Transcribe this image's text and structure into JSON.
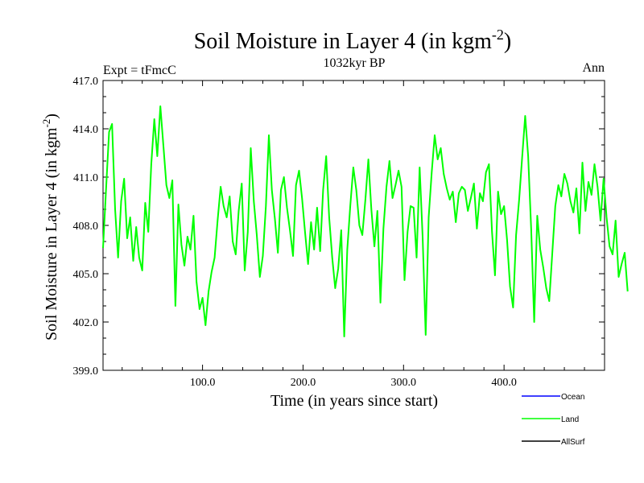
{
  "chart_data": {
    "type": "line",
    "title": "Soil Moisture in Layer 4 (in kgm",
    "title_sup": "-2",
    "title_end": ")",
    "subtitle": "1032kyr BP",
    "left_label": "Expt = tFmcC",
    "right_label": "Ann",
    "xlabel": "Time (in years since start)",
    "ylabel": "Soil Moisture in Layer 4 (in kgm",
    "ylabel_sup": "-2",
    "ylabel_end": ")",
    "xlim": [
      1,
      500
    ],
    "ylim": [
      399.0,
      417.0
    ],
    "x_ticks": [
      100,
      200,
      300,
      400
    ],
    "x_tick_labels": [
      "100.0",
      "200.0",
      "300.0",
      "400.0"
    ],
    "y_ticks": [
      399,
      402,
      405,
      408,
      411,
      414,
      417
    ],
    "y_tick_labels": [
      "399.0",
      "402.0",
      "405.0",
      "408.0",
      "411.0",
      "414.0",
      "417.0"
    ],
    "legend": [
      {
        "name": "Ocean",
        "color": "#0000ff"
      },
      {
        "name": "Land",
        "color": "#00ff00"
      },
      {
        "name": "AllSurf",
        "color": "#000000"
      }
    ],
    "series": [
      {
        "name": "Land",
        "color": "#00ff00",
        "x_start": 1,
        "x_step": 3,
        "values": [
          406.6,
          410.2,
          413.8,
          414.3,
          409.0,
          406.0,
          409.5,
          410.9,
          407.2,
          408.5,
          405.8,
          407.9,
          406.0,
          405.2,
          409.4,
          407.6,
          411.8,
          414.6,
          412.3,
          415.4,
          413.0,
          410.5,
          409.7,
          410.8,
          403.0,
          409.3,
          406.8,
          405.5,
          407.3,
          406.5,
          408.6,
          404.5,
          402.8,
          403.5,
          401.8,
          403.9,
          405.1,
          406.0,
          408.3,
          410.4,
          409.2,
          408.5,
          409.8,
          407.0,
          406.2,
          408.9,
          410.6,
          405.2,
          407.6,
          412.8,
          409.5,
          407.4,
          404.8,
          406.1,
          409.2,
          413.6,
          410.2,
          408.4,
          406.3,
          410.2,
          411.0,
          409.1,
          407.7,
          406.1,
          410.5,
          411.4,
          409.7,
          407.6,
          405.6,
          408.2,
          406.5,
          409.1,
          406.4,
          410.2,
          412.3,
          408.5,
          406.0,
          404.1,
          405.3,
          407.7,
          401.1,
          406.5,
          409.2,
          411.6,
          410.2,
          408.0,
          407.4,
          409.6,
          412.1,
          409.0,
          406.7,
          408.9,
          403.2,
          407.8,
          410.4,
          412.0,
          409.7,
          410.5,
          411.4,
          410.4,
          404.6,
          407.6,
          409.2,
          409.1,
          406.0,
          411.6,
          407.3,
          401.2,
          408.5,
          411.3,
          413.6,
          412.1,
          412.8,
          411.2,
          410.3,
          409.6,
          410.1,
          408.2,
          410.0,
          410.4,
          410.2,
          408.9,
          409.7,
          410.6,
          407.8,
          410.0,
          409.5,
          411.3,
          411.8,
          407.6,
          404.9,
          410.1,
          408.7,
          409.2,
          407.1,
          404.2,
          402.9,
          407.4,
          409.6,
          412.2,
          414.8,
          412.3,
          407.7,
          402.0,
          408.6,
          406.5,
          405.4,
          404.1,
          403.3,
          406.3,
          409.2,
          410.5,
          409.8,
          411.2,
          410.6,
          409.5,
          408.8,
          410.3,
          407.5,
          411.9,
          408.9,
          410.7,
          409.9,
          411.8,
          410.4,
          408.3,
          410.9,
          408.5,
          406.7,
          406.2,
          408.3,
          404.8,
          405.6,
          406.3,
          403.9
        ]
      }
    ]
  }
}
